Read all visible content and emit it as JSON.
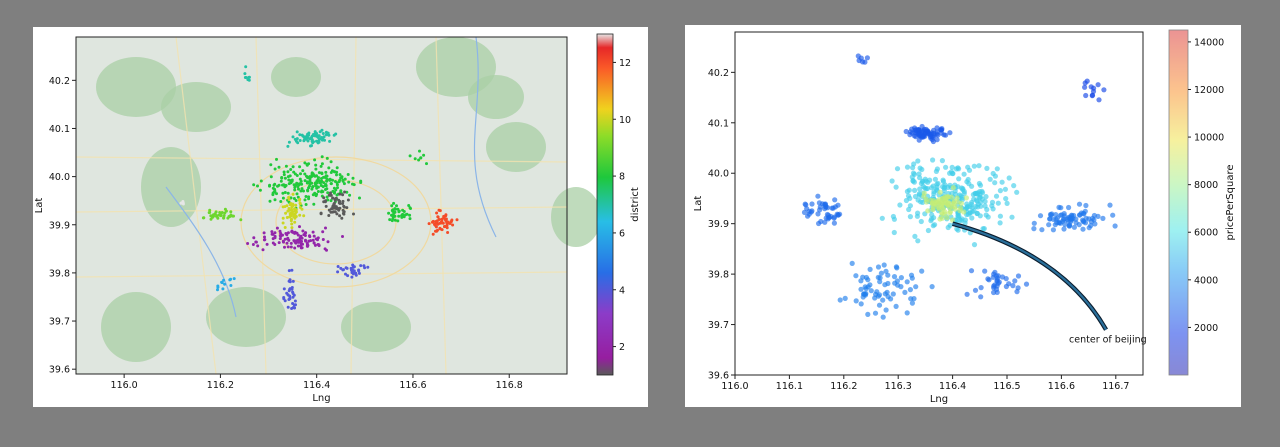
{
  "chart_data": [
    {
      "type": "scatter",
      "xlabel": "Lng",
      "ylabel": "Lat",
      "xlim": [
        115.9,
        116.92
      ],
      "ylim": [
        39.59,
        40.29
      ],
      "xticks": [
        "116.0",
        "116.2",
        "116.4",
        "116.6",
        "116.8"
      ],
      "yticks": [
        "39.6",
        "39.7",
        "39.8",
        "39.9",
        "40.0",
        "40.1",
        "40.2"
      ],
      "background": "street map",
      "colorbar": {
        "label": "district",
        "range": [
          1,
          13
        ],
        "ticks": [
          "2",
          "4",
          "6",
          "8",
          "10",
          "12"
        ],
        "colormap": "rainbow"
      },
      "clusters": [
        {
          "district": 7,
          "x": [
            116.33,
            116.45
          ],
          "y": [
            40.06,
            40.1
          ],
          "n": 70
        },
        {
          "district": 8,
          "x": [
            116.25,
            116.52
          ],
          "y": [
            39.92,
            40.05
          ],
          "n": 230
        },
        {
          "district": 8,
          "x": [
            116.53,
            116.61
          ],
          "y": [
            39.9,
            39.95
          ],
          "n": 40
        },
        {
          "district": 8,
          "x": [
            116.58,
            116.64
          ],
          "y": [
            40.02,
            40.06
          ],
          "n": 8
        },
        {
          "district": 10,
          "x": [
            116.32,
            116.38
          ],
          "y": [
            39.88,
            39.97
          ],
          "n": 55
        },
        {
          "district": 9,
          "x": [
            116.15,
            116.26
          ],
          "y": [
            39.9,
            39.94
          ],
          "n": 35
        },
        {
          "district": 1,
          "x": [
            116.4,
            116.48
          ],
          "y": [
            39.9,
            39.98
          ],
          "n": 60
        },
        {
          "district": 2,
          "x": [
            116.23,
            116.47
          ],
          "y": [
            39.84,
            39.9
          ],
          "n": 110
        },
        {
          "district": 4,
          "x": [
            116.32,
            116.37
          ],
          "y": [
            39.69,
            39.83
          ],
          "n": 35
        },
        {
          "district": 4,
          "x": [
            116.43,
            116.52
          ],
          "y": [
            39.78,
            39.83
          ],
          "n": 30
        },
        {
          "district": 12,
          "x": [
            116.62,
            116.7
          ],
          "y": [
            39.87,
            39.94
          ],
          "n": 55
        },
        {
          "district": 13,
          "x": [
            116.11,
            116.13
          ],
          "y": [
            39.94,
            39.95
          ],
          "n": 5
        },
        {
          "district": 6,
          "x": [
            116.18,
            116.24
          ],
          "y": [
            39.75,
            39.8
          ],
          "n": 12
        },
        {
          "district": 7,
          "x": [
            116.24,
            116.27
          ],
          "y": [
            40.19,
            40.23
          ],
          "n": 8
        }
      ]
    },
    {
      "type": "scatter",
      "xlabel": "Lng",
      "ylabel": "Lat",
      "xlim": [
        116.0,
        116.75
      ],
      "ylim": [
        39.6,
        40.28
      ],
      "xticks": [
        "116.0",
        "116.1",
        "116.2",
        "116.3",
        "116.4",
        "116.5",
        "116.6",
        "116.7"
      ],
      "yticks": [
        "39.6",
        "39.7",
        "39.8",
        "39.9",
        "40.0",
        "40.1",
        "40.2"
      ],
      "colorbar": {
        "label": "pricePerSquare",
        "range": [
          0,
          14500
        ],
        "ticks": [
          "2000",
          "4000",
          "6000",
          "8000",
          "10000",
          "12000",
          "14000"
        ],
        "colormap": "jet"
      },
      "annotation": {
        "text": "center of beijing",
        "point": [
          116.4,
          39.9
        ],
        "text_at": [
          116.66,
          39.67
        ]
      },
      "clusters": [
        {
          "price": 2500,
          "x": [
            116.3,
            116.4
          ],
          "y": [
            40.06,
            40.1
          ],
          "n": 70
        },
        {
          "price": 5500,
          "x": [
            116.25,
            116.55
          ],
          "y": [
            39.85,
            40.05
          ],
          "n": 260
        },
        {
          "price": 8800,
          "x": [
            116.33,
            116.44
          ],
          "y": [
            39.9,
            39.98
          ],
          "n": 70
        },
        {
          "price": 3300,
          "x": [
            116.52,
            116.72
          ],
          "y": [
            39.87,
            39.95
          ],
          "n": 80
        },
        {
          "price": 3000,
          "x": [
            116.1,
            116.22
          ],
          "y": [
            39.88,
            39.96
          ],
          "n": 45
        },
        {
          "price": 3500,
          "x": [
            116.15,
            116.4
          ],
          "y": [
            39.7,
            39.85
          ],
          "n": 70
        },
        {
          "price": 3000,
          "x": [
            116.42,
            116.55
          ],
          "y": [
            39.74,
            39.83
          ],
          "n": 35
        },
        {
          "price": 2000,
          "x": [
            116.63,
            116.69
          ],
          "y": [
            40.13,
            40.2
          ],
          "n": 12
        },
        {
          "price": 2500,
          "x": [
            116.22,
            116.25
          ],
          "y": [
            40.21,
            40.24
          ],
          "n": 6
        }
      ]
    }
  ]
}
